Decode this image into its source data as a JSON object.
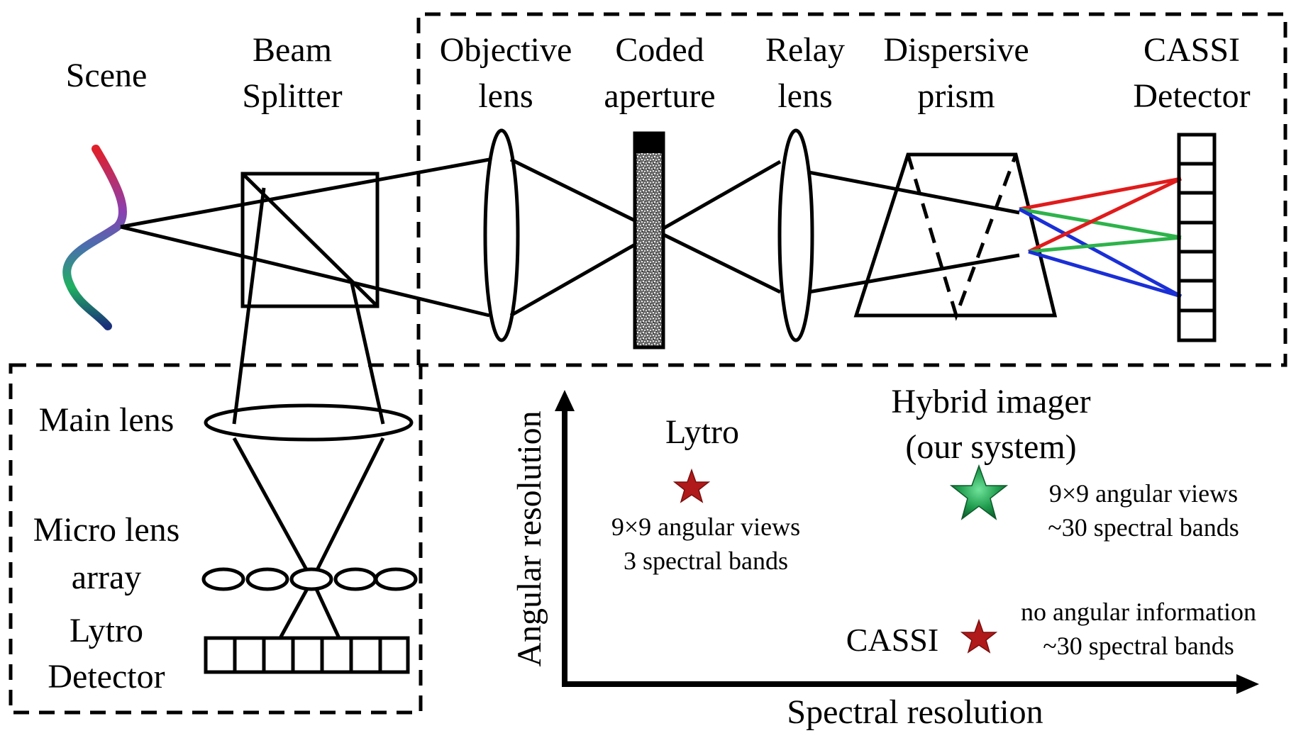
{
  "labels": {
    "scene": "Scene",
    "beam_splitter": [
      "Beam",
      "Splitter"
    ],
    "objective_lens": [
      "Objective",
      "lens"
    ],
    "coded_aperture": [
      "Coded",
      "aperture"
    ],
    "relay_lens": [
      "Relay",
      "lens"
    ],
    "dispersive_prism": [
      "Dispersive",
      "prism"
    ],
    "cassi_detector": [
      "CASSI",
      "Detector"
    ],
    "main_lens": "Main lens",
    "micro_lens_array": [
      "Micro lens",
      "array"
    ],
    "lytro_detector": [
      "Lytro",
      "Detector"
    ]
  },
  "chart": {
    "y_axis_label": "Angular resolution",
    "x_axis_label": "Spectral resolution",
    "systems": [
      {
        "name": "Lytro",
        "desc": [
          "9×9 angular views",
          "3 spectral bands"
        ],
        "color": "#b11a1a"
      },
      {
        "name": [
          "Hybrid imager",
          "(our system)"
        ],
        "desc": [
          "9×9 angular views",
          "~30 spectral bands"
        ],
        "color": "#1e9a4c"
      },
      {
        "name": "CASSI",
        "desc": [
          "no angular information",
          "~30 spectral bands"
        ],
        "color": "#b11a1a"
      }
    ]
  },
  "colors": {
    "ray_red": "#e01b1b",
    "ray_green": "#2db34a",
    "ray_blue": "#1a2fd6"
  }
}
